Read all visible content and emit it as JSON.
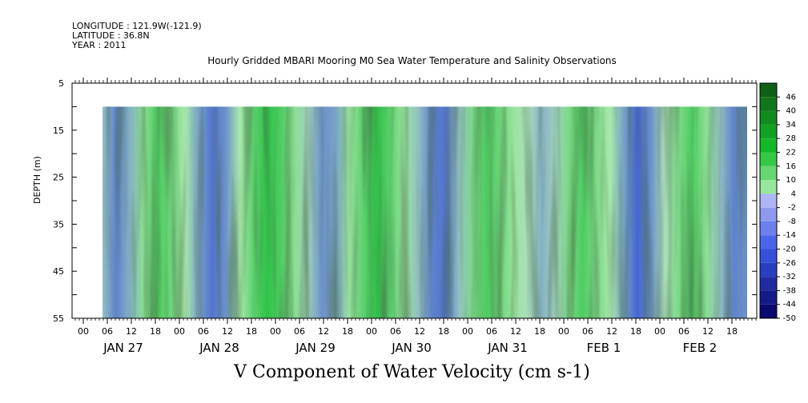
{
  "header": {
    "longitude": "LONGITUDE : 121.9W(-121.9)",
    "latitude": "LATITUDE : 36.8N",
    "year": "YEAR : 2011"
  },
  "chart_data": {
    "type": "heatmap",
    "title": "Hourly Gridded MBARI Mooring M0 Sea Water Temperature and Salinity Observations",
    "xlabel": "V Component of Water Velocity (cm s-1)",
    "ylabel": "DEPTH (m)",
    "y_ticks": [
      5,
      15,
      25,
      35,
      45,
      55
    ],
    "y_range_m": [
      5,
      55
    ],
    "data_depth_range_m": [
      10,
      55
    ],
    "x_hour_ticks": [
      "00",
      "06",
      "12",
      "18",
      "00",
      "06",
      "12",
      "18",
      "00",
      "06",
      "12",
      "18",
      "00",
      "06",
      "12",
      "18",
      "00",
      "06",
      "12",
      "18",
      "00",
      "06",
      "12",
      "18",
      "00",
      "06",
      "12",
      "18"
    ],
    "x_day_labels": [
      "JAN 27",
      "JAN 28",
      "JAN 29",
      "JAN 30",
      "JAN 31",
      "FEB  1",
      "FEB  2"
    ],
    "colorbar": {
      "levels": [
        "-50",
        "-44",
        "-38",
        "-32",
        "-26",
        "-20",
        "-14",
        "-8",
        "-2",
        "4",
        "10",
        "16",
        "22",
        "28",
        "34",
        "40",
        "46"
      ],
      "min": -50,
      "max": 50,
      "color_negative": "#2c46d8",
      "color_zero": "#b8eeb8",
      "color_positive": "#12b830"
    },
    "time_series_v_cm_s": [
      -6,
      -14,
      -8,
      6,
      14,
      10,
      2,
      -10,
      -16,
      -12,
      2,
      12,
      18,
      14,
      6,
      -4,
      -12,
      -10,
      4,
      12,
      18,
      12,
      4,
      -6,
      -14,
      -16,
      -6,
      8,
      14,
      10,
      4,
      -2,
      -8,
      -4,
      8,
      14,
      8,
      2,
      -10,
      -18,
      -12,
      -2,
      8,
      14,
      6,
      -6,
      -14,
      -12
    ]
  }
}
